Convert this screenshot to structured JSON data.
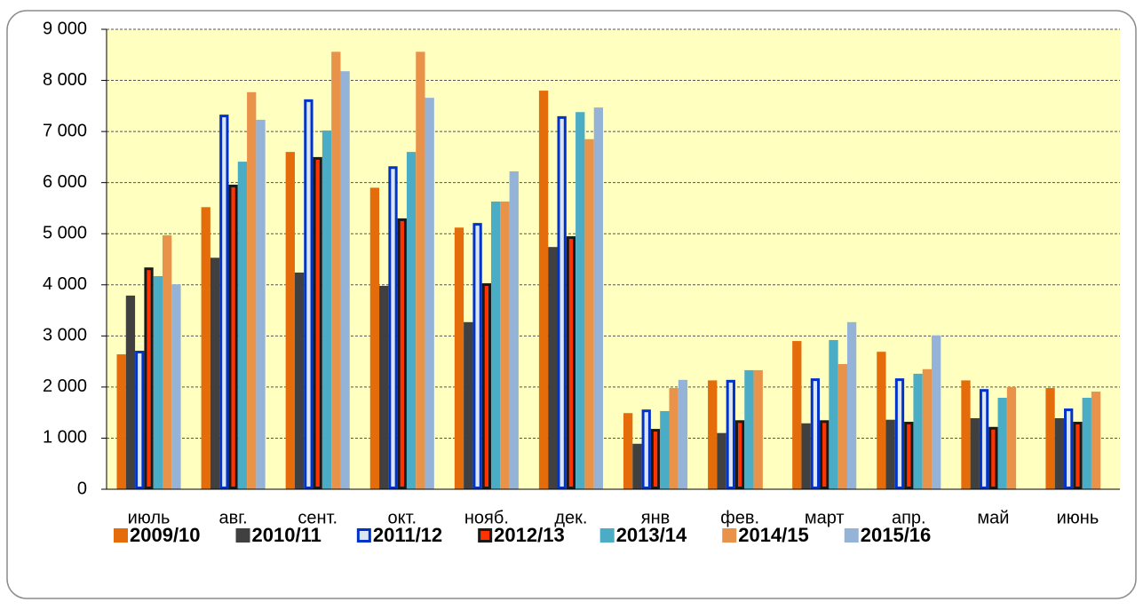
{
  "chart_data": {
    "type": "bar",
    "categories": [
      "июль",
      "авг.",
      "сент.",
      "окт.",
      "нояб.",
      "дек.",
      "янв",
      "фев.",
      "март",
      "апр.",
      "май",
      "июнь"
    ],
    "series": [
      {
        "name": "2009/10",
        "color": "#e46c0a",
        "edgecolor": "#e46c0a",
        "values": [
          2640,
          5520,
          6600,
          5900,
          5120,
          7800,
          1490,
          2130,
          2900,
          2690,
          2130,
          1980
        ]
      },
      {
        "name": "2010/11",
        "color": "#404040",
        "edgecolor": "#404040",
        "values": [
          3790,
          4530,
          4240,
          3980,
          3270,
          4740,
          890,
          1100,
          1290,
          1360,
          1390,
          1390
        ]
      },
      {
        "name": "2011/12",
        "color": "#dce6f2",
        "edgecolor": "#0033cc",
        "values": [
          2710,
          7330,
          7630,
          6320,
          5210,
          7300,
          1560,
          2140,
          2170,
          2170,
          1960,
          1580
        ]
      },
      {
        "name": "2012/13",
        "color": "#ff3300",
        "edgecolor": "#1a1a1a",
        "values": [
          4340,
          5960,
          6500,
          5300,
          4030,
          4950,
          1180,
          1350,
          1350,
          1320,
          1220,
          1320
        ]
      },
      {
        "name": "2013/14",
        "color": "#4bacc6",
        "edgecolor": "#4bacc6",
        "values": [
          4170,
          6410,
          7020,
          6600,
          5630,
          7380,
          1530,
          2330,
          2920,
          2260,
          1790,
          1790
        ]
      },
      {
        "name": "2014/15",
        "color": "#e9924a",
        "edgecolor": "#e9924a",
        "values": [
          4970,
          7770,
          8560,
          8560,
          5630,
          6850,
          1980,
          2330,
          2450,
          2350,
          2000,
          1910
        ]
      },
      {
        "name": "2015/16",
        "color": "#95b3d7",
        "edgecolor": "#95b3d7",
        "values": [
          4010,
          7230,
          8180,
          7660,
          6220,
          7470,
          2140,
          null,
          3270,
          3010,
          null,
          null
        ]
      }
    ],
    "ylim": [
      0,
      9000
    ],
    "yticks": [
      0,
      {
        "value": 1000,
        "label": "1 000"
      },
      {
        "value": 2000,
        "label": "2 000"
      },
      {
        "value": 3000,
        "label": "3 000"
      },
      {
        "value": 4000,
        "label": "4 000"
      },
      {
        "value": 5000,
        "label": "5 000"
      },
      {
        "value": 6000,
        "label": "6 000"
      },
      {
        "value": 7000,
        "label": "7 000"
      },
      {
        "value": 8000,
        "label": "8 000"
      },
      {
        "value": 9000,
        "label": "9 000"
      }
    ],
    "grid": true,
    "legend": "bottom"
  }
}
